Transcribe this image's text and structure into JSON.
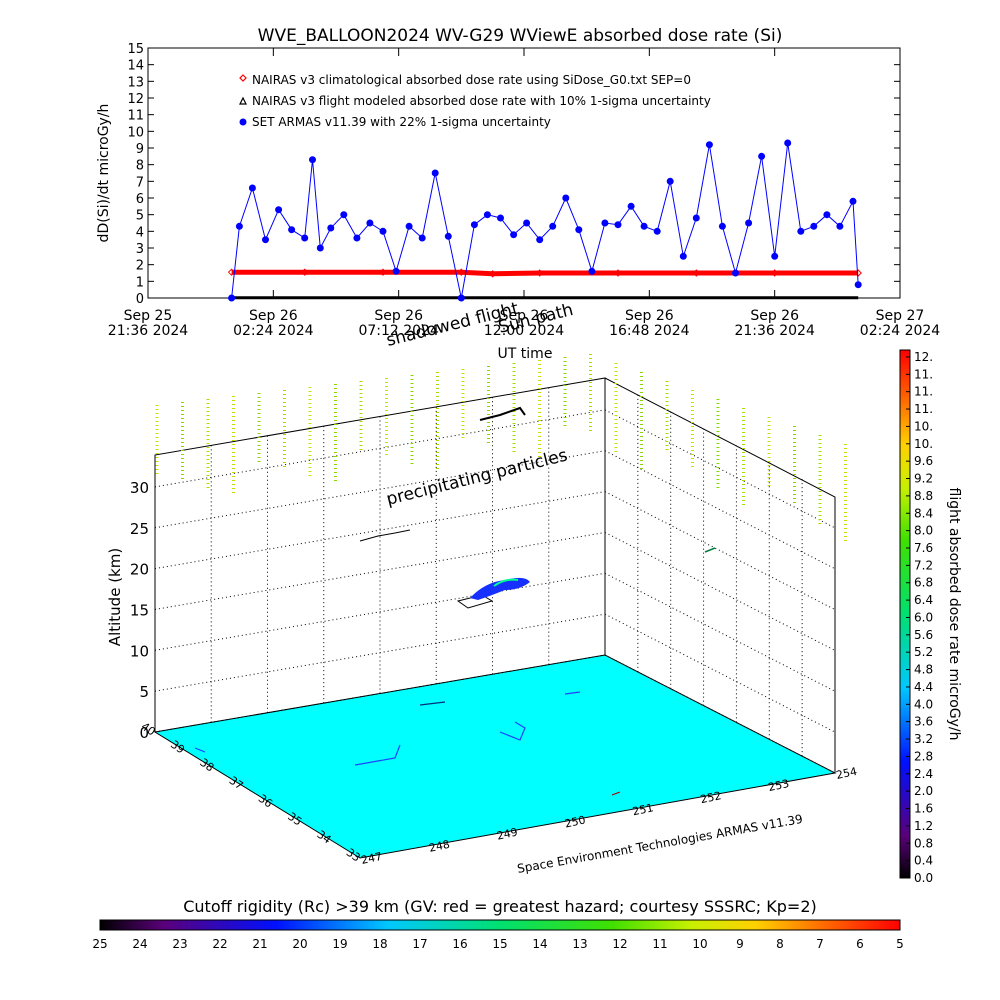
{
  "chart_data": [
    {
      "type": "line",
      "title": "WVE_BALLOON2024 WV-G29 WViewE absorbed dose rate (Si)",
      "ylabel": "dD(Si)/dt microGy/h",
      "xlabel": "UT time",
      "ylim": [
        0,
        15
      ],
      "y_ticks": [
        "0",
        "1",
        "2",
        "3",
        "4",
        "5",
        "6",
        "7",
        "8",
        "9",
        "10",
        "11",
        "12",
        "13",
        "14",
        "15"
      ],
      "x_ticks": [
        {
          "line1": "Sep 25",
          "line2": "21:36 2024"
        },
        {
          "line1": "Sep 26",
          "line2": "02:24 2024"
        },
        {
          "line1": "Sep 26",
          "line2": "07:12 2024"
        },
        {
          "line1": "Sep 26",
          "line2": "12:00 2024"
        },
        {
          "line1": "Sep 26",
          "line2": "16:48 2024"
        },
        {
          "line1": "Sep 26",
          "line2": "21:36 2024"
        },
        {
          "line1": "Sep 27",
          "line2": "02:24 2024"
        }
      ],
      "x_hours_range": [
        0,
        28.8
      ],
      "legend_position": "top-left",
      "overlay_labels": [
        "Sun path",
        "shadowed flight"
      ],
      "series": [
        {
          "name": "NAIRAS v3 climatological absorbed dose rate using SiDose_G0.txt SEP=0",
          "color": "#ff0000",
          "marker": "diamond",
          "x_hours": [
            3.2,
            6,
            9,
            12,
            13.2,
            15,
            18,
            21,
            24,
            27.2
          ],
          "values": [
            1.55,
            1.55,
            1.55,
            1.55,
            1.45,
            1.5,
            1.5,
            1.5,
            1.5,
            1.5
          ]
        },
        {
          "name": "NAIRAS v3 flight modeled absorbed dose rate with 10% 1-sigma uncertainty",
          "color": "#000000",
          "marker": "triangle",
          "x_hours": [
            3.2,
            27.2
          ],
          "values": [
            0.02,
            0.02
          ]
        },
        {
          "name": "SET ARMAS v11.39 with 22% 1-sigma uncertainty",
          "color": "#0000ff",
          "marker": "circle",
          "x_hours": [
            3.2,
            3.5,
            4.0,
            4.5,
            5.0,
            5.5,
            6.0,
            6.3,
            6.6,
            7.0,
            7.5,
            8.0,
            8.5,
            9.0,
            9.5,
            10.0,
            10.5,
            11.0,
            11.5,
            12.0,
            12.5,
            13.0,
            13.5,
            14.0,
            14.5,
            15.0,
            15.5,
            16.0,
            16.5,
            17.0,
            17.5,
            18.0,
            18.5,
            19.0,
            19.5,
            20.0,
            20.5,
            21.0,
            21.5,
            22.0,
            22.5,
            23.0,
            23.5,
            24.0,
            24.5,
            25.0,
            25.5,
            26.0,
            26.5,
            27.0,
            27.2
          ],
          "values": [
            0,
            4.3,
            6.6,
            3.5,
            5.3,
            4.1,
            3.6,
            8.3,
            3.0,
            4.2,
            5.0,
            3.6,
            4.5,
            4.0,
            1.6,
            4.3,
            3.6,
            7.5,
            3.7,
            0,
            4.4,
            5.0,
            4.8,
            3.8,
            4.5,
            3.5,
            4.3,
            6.0,
            4.1,
            1.6,
            4.5,
            4.4,
            5.5,
            4.3,
            4.0,
            7.0,
            2.5,
            4.8,
            9.2,
            4.3,
            1.5,
            4.5,
            8.5,
            2.5,
            9.3,
            4.0,
            4.3,
            5.0,
            4.3,
            5.8,
            0.8
          ]
        }
      ]
    },
    {
      "type": "heatmap",
      "ylabel": "Altitude (km)",
      "z_ticks": [
        "0",
        "5",
        "10",
        "15",
        "20",
        "25",
        "30"
      ],
      "lat_ticks": [
        "33",
        "34",
        "35",
        "36",
        "37",
        "38",
        "39",
        "40"
      ],
      "lon_ticks": [
        "247",
        "248",
        "249",
        "250",
        "251",
        "252",
        "253",
        "254"
      ],
      "floor_color": "#00ffff",
      "annotations": [
        "precipitating particles"
      ],
      "credit": "Space Environment Technologies ARMAS v11.39"
    }
  ],
  "dose_colorbar": {
    "label": "flight absorbed dose rate microGy/h",
    "ticks": [
      "0.0",
      "0.4",
      "0.8",
      "1.2",
      "1.6",
      "2.0",
      "2.4",
      "2.8",
      "3.2",
      "3.6",
      "4.0",
      "4.4",
      "4.8",
      "5.2",
      "5.6",
      "6.0",
      "6.4",
      "6.8",
      "7.2",
      "7.6",
      "8.0",
      "8.4",
      "8.8",
      "9.2",
      "9.6",
      "10.",
      "10.",
      "11.",
      "11.",
      "11.",
      "12."
    ]
  },
  "rc_colorbar": {
    "title": "Cutoff rigidity (Rc) >39 km (GV: red = greatest hazard; courtesy SSSRC; Kp=2)",
    "ticks": [
      "25",
      "24",
      "23",
      "22",
      "21",
      "20",
      "19",
      "18",
      "17",
      "16",
      "15",
      "14",
      "13",
      "12",
      "11",
      "10",
      "9",
      "8",
      "7",
      "6",
      "5"
    ]
  }
}
